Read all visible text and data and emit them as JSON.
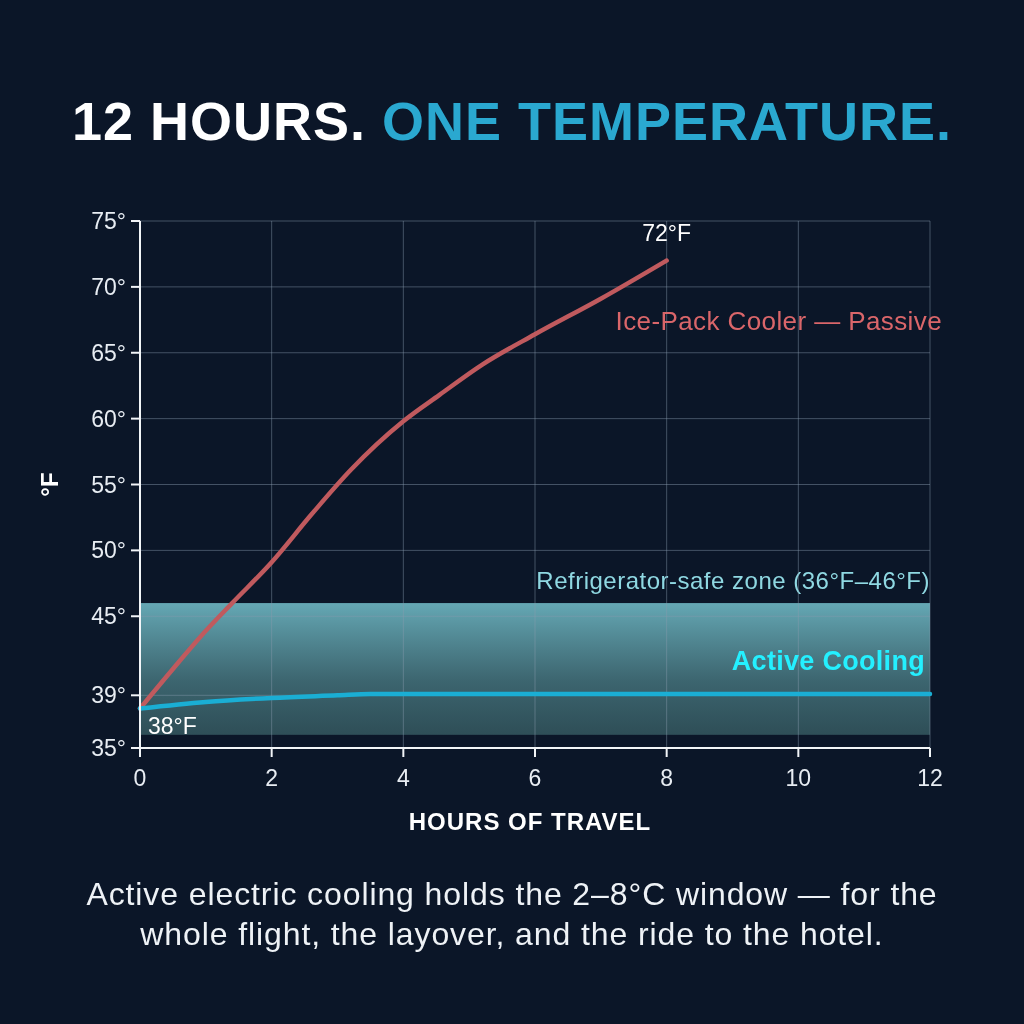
{
  "chart_data": {
    "type": "line",
    "title": "12 HOURS. ONE TEMPERATURE.",
    "xlabel": "HOURS OF TRAVEL",
    "ylabel": "°F",
    "xlim": [
      0,
      12
    ],
    "xticks": [
      0,
      2,
      4,
      6,
      8,
      10,
      12
    ],
    "ylim": [
      35,
      75
    ],
    "yticks": [
      {
        "value": 35,
        "label": "35°"
      },
      {
        "value": 39,
        "label": "39°"
      },
      {
        "value": 45,
        "label": "45°"
      },
      {
        "value": 50,
        "label": "50°"
      },
      {
        "value": 55,
        "label": "55°"
      },
      {
        "value": 60,
        "label": "60°"
      },
      {
        "value": 65,
        "label": "65°"
      },
      {
        "value": 70,
        "label": "70°"
      },
      {
        "value": 75,
        "label": "75°"
      }
    ],
    "grid": true,
    "series": [
      {
        "name": "Ice-Pack Cooler — Passive",
        "color": "#c05a5e",
        "x": [
          0,
          0.5,
          1,
          1.4,
          2,
          2.6,
          3.2,
          4,
          4.55,
          5.2,
          6,
          7,
          8
        ],
        "values": [
          38,
          41,
          43.9,
          46,
          49.1,
          52.7,
          56.1,
          59.8,
          61.8,
          64.1,
          66.4,
          69.1,
          72
        ]
      },
      {
        "name": "Active Cooling",
        "color": "#1aaed4",
        "x": [
          0,
          1,
          2,
          3,
          3.5,
          4,
          6,
          8,
          10,
          12
        ],
        "values": [
          38,
          38.5,
          38.8,
          39,
          39.1,
          39.1,
          39.1,
          39.1,
          39.1,
          39.1
        ]
      }
    ],
    "bands": [
      {
        "axis": "y",
        "from": 36,
        "to": 46,
        "label": "Refrigerator-safe zone (36°F–46°F)",
        "color": "#6fb8c4"
      }
    ],
    "annotations": [
      {
        "text": "72°F",
        "x": 8,
        "y": 72
      },
      {
        "text": "38°F",
        "x": 0,
        "y": 38
      },
      "Active electric cooling holds the 2–8°C window — for the whole flight, the layover, and the ride to the hotel."
    ]
  }
}
